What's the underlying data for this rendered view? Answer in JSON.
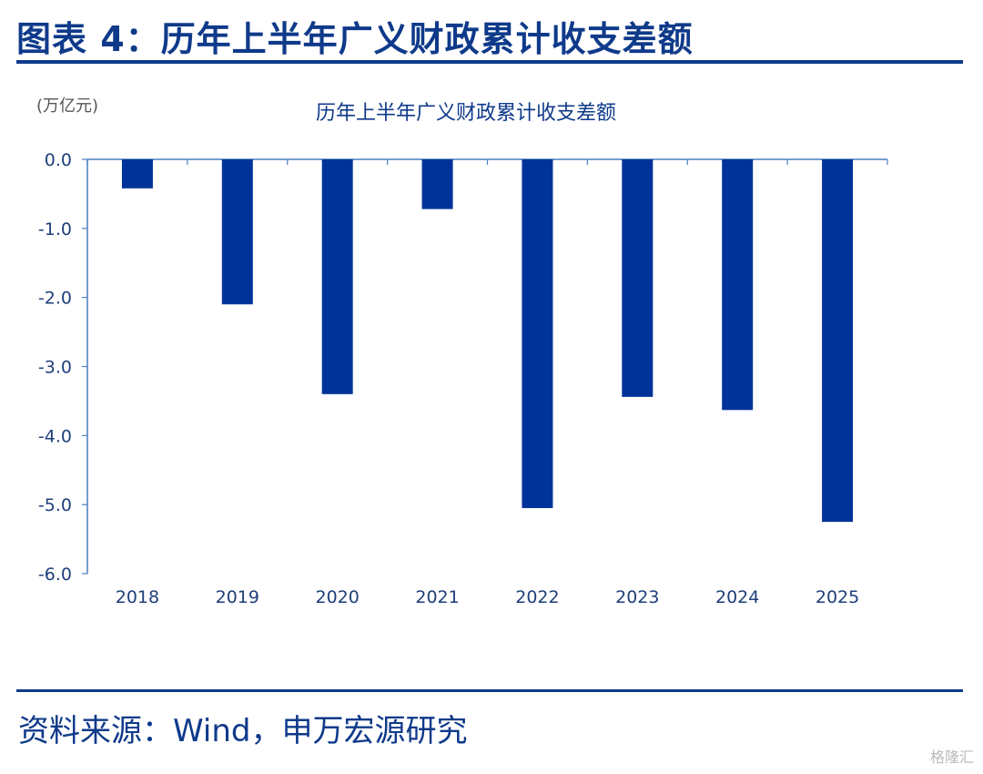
{
  "header": {
    "figure_title": "图表 4：历年上半年广义财政累计收支差额"
  },
  "footer": {
    "source": "资料来源：Wind，申万宏源研究",
    "watermark": "格隆汇"
  },
  "chart_data": {
    "type": "bar",
    "title": "历年上半年广义财政累计收支差额",
    "ylabel": "(万亿元)",
    "xlabel": "",
    "categories": [
      "2018",
      "2019",
      "2020",
      "2021",
      "2022",
      "2023",
      "2024",
      "2025"
    ],
    "values": [
      -0.42,
      -2.1,
      -3.4,
      -0.72,
      -5.05,
      -3.44,
      -3.63,
      -5.25
    ],
    "ylim": [
      -6.0,
      0.0
    ],
    "yticks": [
      "0.0",
      "-1.0",
      "-2.0",
      "-3.0",
      "-4.0",
      "-5.0",
      "-6.0"
    ],
    "grid": false,
    "bar_color": "#003399"
  }
}
